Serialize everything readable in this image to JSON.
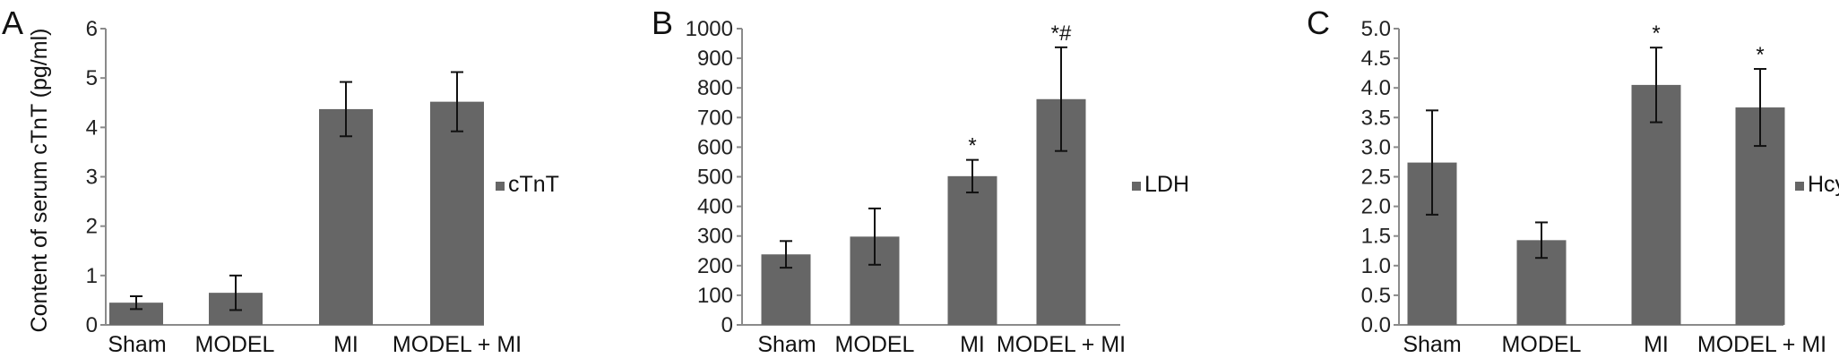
{
  "colors": {
    "bar": "#666666",
    "axis": "#8a8a8a",
    "error": "#111111"
  },
  "chart_data": [
    {
      "type": "bar",
      "panel_label": "A",
      "ylabel": "Content of serum cTnT (pg/ml)",
      "ylim": [
        0,
        6
      ],
      "yticks": [
        "0",
        "1",
        "2",
        "3",
        "4",
        "5",
        "6"
      ],
      "categories": [
        "Sham",
        "MODEL",
        "MI",
        "MODEL + MI"
      ],
      "series": [
        {
          "name": "cTnT",
          "values": [
            0.45,
            0.65,
            4.37,
            4.52
          ],
          "errors": [
            0.13,
            0.35,
            0.55,
            0.6
          ]
        }
      ],
      "annotations": [
        "",
        "",
        "",
        ""
      ],
      "legend": "right"
    },
    {
      "type": "bar",
      "panel_label": "B",
      "ylabel": "",
      "ylim": [
        0,
        1000
      ],
      "yticks": [
        "0",
        "100",
        "200",
        "300",
        "400",
        "500",
        "600",
        "700",
        "800",
        "900",
        "1000"
      ],
      "categories": [
        "Sham",
        "MODEL",
        "MI",
        "MODEL + MI"
      ],
      "series": [
        {
          "name": "LDH",
          "values": [
            238,
            298,
            502,
            762
          ],
          "errors": [
            45,
            95,
            55,
            175
          ]
        }
      ],
      "annotations": [
        "",
        "",
        "*",
        "*#"
      ],
      "legend": "right"
    },
    {
      "type": "bar",
      "panel_label": "C",
      "ylabel": "",
      "ylim": [
        0,
        5
      ],
      "yticks": [
        "0.0",
        "0.5",
        "1.0",
        "1.5",
        "2.0",
        "2.5",
        "3.0",
        "3.5",
        "4.0",
        "4.5",
        "5.0"
      ],
      "categories": [
        "Sham",
        "MODEL",
        "MI",
        "MODEL + MI"
      ],
      "series": [
        {
          "name": "Hcy",
          "values": [
            2.74,
            1.43,
            4.05,
            3.67
          ],
          "errors": [
            0.88,
            0.3,
            0.63,
            0.65
          ]
        }
      ],
      "annotations": [
        "",
        "",
        "*",
        "*"
      ],
      "legend": "right"
    }
  ]
}
